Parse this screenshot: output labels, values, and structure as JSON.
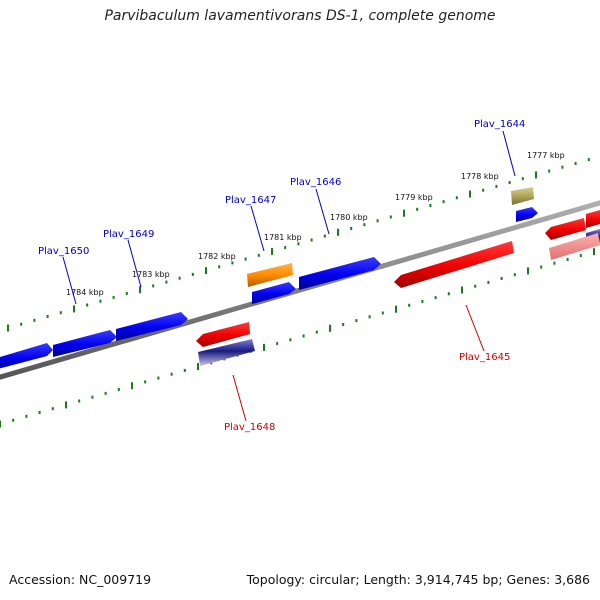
{
  "title": "Parvibaculum lavamentivorans DS-1, complete genome",
  "footer": {
    "accession": "Accession: NC_009719",
    "topology": "Topology: circular; Length: 3,914,745 bp; Genes: 3,686"
  },
  "colors": {
    "forward_gene": "#0000ee",
    "reverse_gene": "#ee0000",
    "forward_label": "#0000cc",
    "reverse_label": "#cc0000",
    "backbone": "#808080",
    "ticks": "#1a7a1a"
  },
  "scale_labels": [
    "1777 kbp",
    "1778 kbp",
    "1779 kbp",
    "1780 kbp",
    "1781 kbp",
    "1782 kbp",
    "1783 kbp",
    "1784 kbp"
  ],
  "gene_labels": [
    {
      "text": "Plav_1644",
      "strand": "forward"
    },
    {
      "text": "Plav_1645",
      "strand": "reverse"
    },
    {
      "text": "Plav_1646",
      "strand": "forward"
    },
    {
      "text": "Plav_1647",
      "strand": "forward"
    },
    {
      "text": "Plav_1648",
      "strand": "reverse"
    },
    {
      "text": "Plav_1649",
      "strand": "forward"
    },
    {
      "text": "Plav_1650",
      "strand": "forward"
    }
  ]
}
